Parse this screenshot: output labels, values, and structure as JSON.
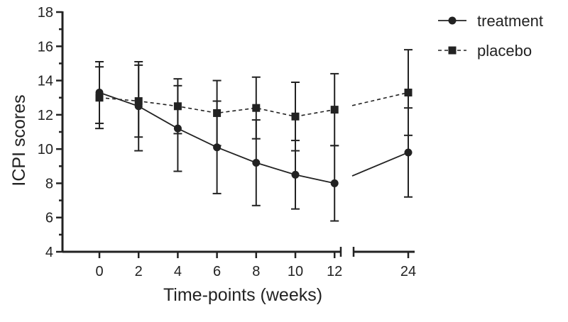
{
  "chart_data": {
    "type": "line",
    "xlabel": "Time-points (weeks)",
    "ylabel": "ICPI scores",
    "ylim": [
      4,
      18
    ],
    "y_ticks": [
      4,
      6,
      8,
      10,
      12,
      14,
      16,
      18
    ],
    "x_ticks": [
      0,
      2,
      4,
      6,
      8,
      10,
      12,
      24
    ],
    "x_axis_break": "between 12 and 24",
    "legend_position": "top-right",
    "series": [
      {
        "name": "treatment",
        "marker": "circle",
        "line_style": "solid",
        "x": [
          0,
          2,
          4,
          6,
          8,
          10,
          12,
          24
        ],
        "y": [
          13.3,
          12.5,
          11.2,
          10.1,
          9.2,
          8.5,
          8.0,
          9.8
        ],
        "error_low": [
          11.5,
          9.9,
          8.7,
          7.4,
          6.7,
          6.5,
          5.8,
          7.2
        ],
        "error_high": [
          15.1,
          15.1,
          13.7,
          12.8,
          11.7,
          10.5,
          10.2,
          12.4
        ]
      },
      {
        "name": "placebo",
        "marker": "square",
        "line_style": "dashed",
        "x": [
          0,
          2,
          4,
          6,
          8,
          10,
          12,
          24
        ],
        "y": [
          13.0,
          12.8,
          12.5,
          12.1,
          12.4,
          11.9,
          12.3,
          13.3
        ],
        "error_low": [
          11.2,
          10.7,
          10.9,
          10.2,
          10.6,
          9.9,
          10.2,
          10.8
        ],
        "error_high": [
          14.8,
          14.9,
          14.1,
          14.0,
          14.2,
          13.9,
          14.4,
          15.8
        ]
      }
    ]
  }
}
